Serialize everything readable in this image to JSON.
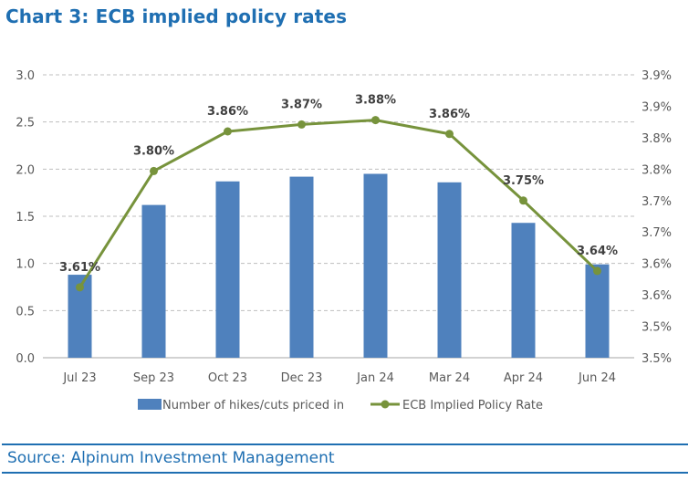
{
  "title": "Chart 3: ECB implied policy rates",
  "source": "Source: Alpinum Investment Management",
  "colors": {
    "title": "#1f6fb2",
    "bar": "#4f81bd",
    "line": "#77933c",
    "grid": "#bfbfbf",
    "axis_text": "#595959",
    "label_text": "#404040"
  },
  "chart_data": {
    "type": "bar+line",
    "categories": [
      "Jul 23",
      "Sep 23",
      "Oct 23",
      "Dec 23",
      "Jan 24",
      "Mar 24",
      "Apr 24",
      "Jun 24"
    ],
    "series": [
      {
        "name": "Number of hikes/cuts priced in",
        "type": "bar",
        "axis": "left",
        "values": [
          0.88,
          1.62,
          1.87,
          1.92,
          1.95,
          1.86,
          1.43,
          0.99
        ]
      },
      {
        "name": "ECB Implied Policy Rate",
        "type": "line",
        "axis": "right",
        "values": [
          3.612,
          3.797,
          3.86,
          3.871,
          3.878,
          3.856,
          3.75,
          3.638
        ],
        "labels": [
          "3.61%",
          "3.80%",
          "3.86%",
          "3.87%",
          "3.88%",
          "3.86%",
          "3.75%",
          "3.64%"
        ]
      }
    ],
    "y_left": {
      "range": [
        0,
        3.0
      ],
      "ticks": [
        "0.0",
        "0.5",
        "1.0",
        "1.5",
        "2.0",
        "2.5",
        "3.0"
      ]
    },
    "y_right": {
      "range": [
        3.5,
        3.95
      ],
      "ticks": [
        "3.5%",
        "3.5%",
        "3.6%",
        "3.6%",
        "3.7%",
        "3.7%",
        "3.8%",
        "3.8%",
        "3.9%",
        "3.9%"
      ]
    },
    "grid": "horizontal dashed",
    "legend": "bottom"
  }
}
